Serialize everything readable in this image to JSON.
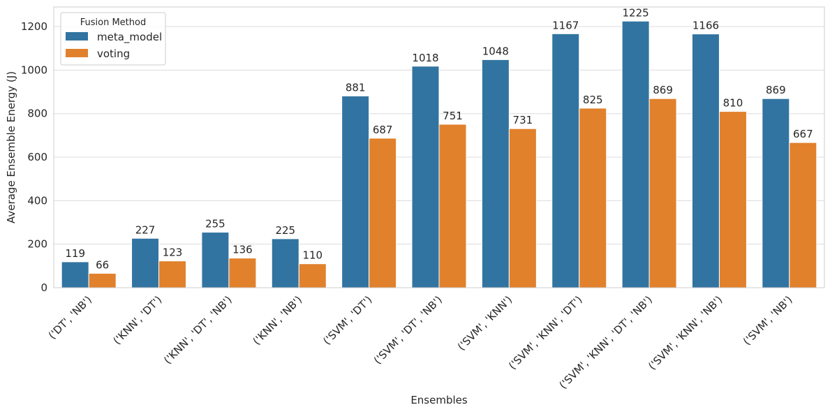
{
  "chart_data": {
    "type": "bar",
    "title": "",
    "xlabel": "Ensembles",
    "ylabel": "Average Ensemble Energy (J)",
    "ylim": [
      0,
      1290
    ],
    "yticks": [
      0,
      200,
      400,
      600,
      800,
      1000,
      1200
    ],
    "grid": true,
    "categories": [
      "('DT', 'NB')",
      "('KNN', 'DT')",
      "('KNN', 'DT', 'NB')",
      "('KNN', 'NB')",
      "('SVM', 'DT')",
      "('SVM', 'DT', 'NB')",
      "('SVM', 'KNN')",
      "('SVM', 'KNN', 'DT')",
      "('SVM', 'KNN', 'DT', 'NB')",
      "('SVM', 'KNN', 'NB')",
      "('SVM', 'NB')"
    ],
    "series": [
      {
        "name": "meta_model",
        "color": "#3274a1",
        "values": [
          119,
          227,
          255,
          225,
          881,
          1018,
          1048,
          1167,
          1225,
          1166,
          869
        ]
      },
      {
        "name": "voting",
        "color": "#e1812c",
        "values": [
          66,
          123,
          136,
          110,
          687,
          751,
          731,
          825,
          869,
          810,
          667
        ]
      }
    ],
    "legend": {
      "title": "Fusion Method",
      "position": "top-left"
    }
  }
}
